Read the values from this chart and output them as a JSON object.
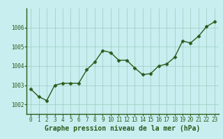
{
  "x": [
    0,
    1,
    2,
    3,
    4,
    5,
    6,
    7,
    8,
    9,
    10,
    11,
    12,
    13,
    14,
    15,
    16,
    17,
    18,
    19,
    20,
    21,
    22,
    23
  ],
  "y": [
    1002.8,
    1002.4,
    1002.2,
    1003.0,
    1003.1,
    1003.1,
    1003.1,
    1003.8,
    1004.2,
    1004.8,
    1004.7,
    1004.3,
    1004.3,
    1003.9,
    1003.55,
    1003.6,
    1004.0,
    1004.1,
    1004.45,
    1005.3,
    1005.2,
    1005.55,
    1006.05,
    1006.3
  ],
  "line_color": "#2d5a1b",
  "marker": "D",
  "marker_size": 2.5,
  "line_width": 1.0,
  "background_color": "#c8eef0",
  "grid_color": "#99ccbb",
  "xlabel": "Graphe pression niveau de la mer (hPa)",
  "xlabel_fontsize": 7,
  "xlabel_color": "#2d5a1b",
  "ylim": [
    1001.5,
    1007.0
  ],
  "xlim": [
    -0.5,
    23.5
  ],
  "yticks": [
    1002,
    1003,
    1004,
    1005,
    1006
  ],
  "xtick_labels": [
    "0",
    "1",
    "2",
    "3",
    "4",
    "5",
    "6",
    "7",
    "8",
    "9",
    "10",
    "11",
    "12",
    "13",
    "14",
    "15",
    "16",
    "17",
    "18",
    "19",
    "20",
    "21",
    "22",
    "23"
  ],
  "tick_fontsize": 5.5,
  "tick_color": "#2d5a1b",
  "spine_color": "#2d5a1b"
}
